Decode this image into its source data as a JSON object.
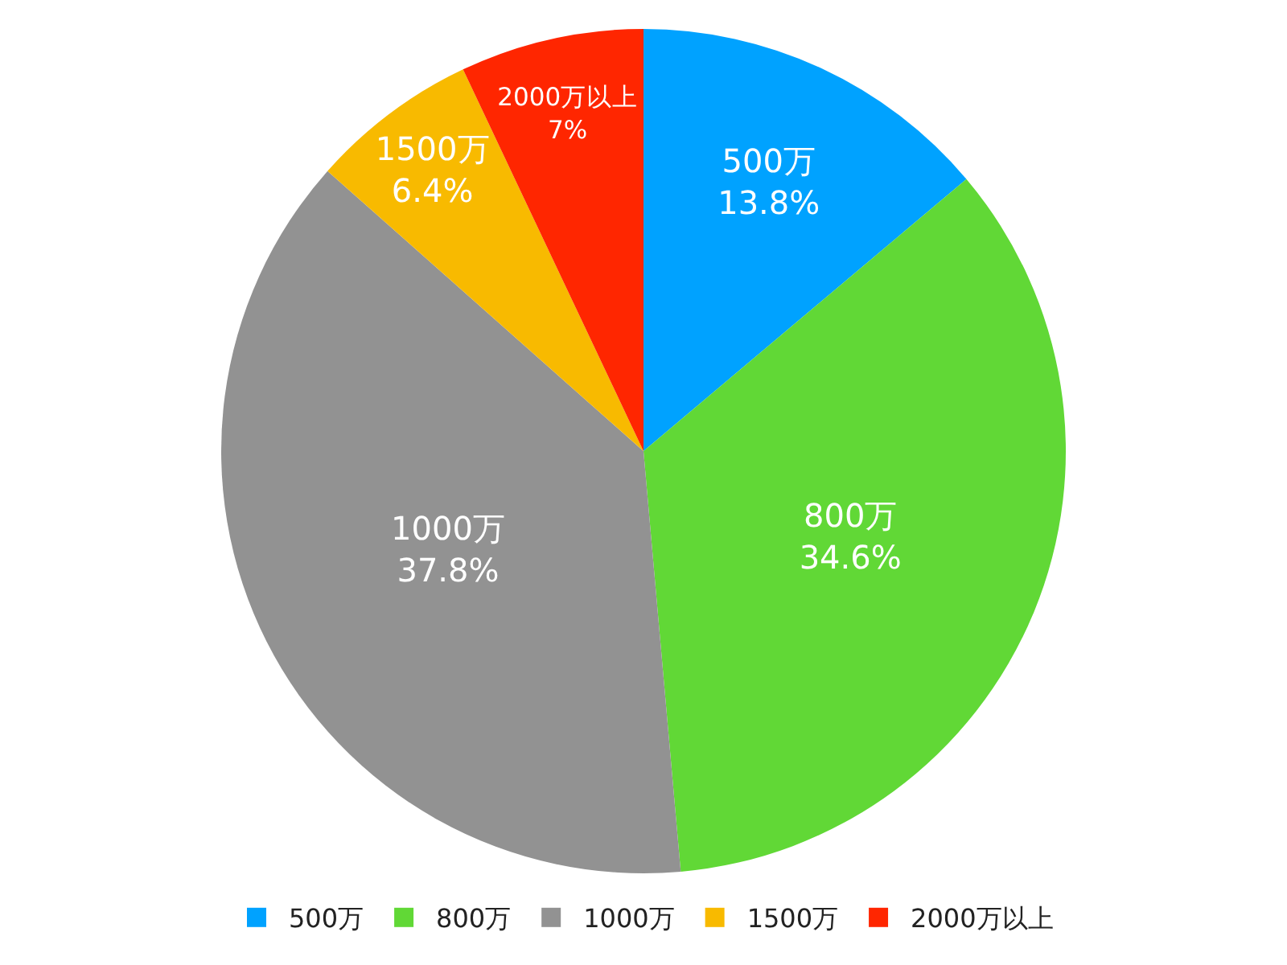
{
  "chart_data": {
    "type": "pie",
    "categories": [
      "500万",
      "800万",
      "1000万",
      "1500万",
      "2000万以上"
    ],
    "values": [
      13.8,
      34.6,
      37.8,
      6.4,
      7
    ],
    "value_labels": [
      "13.8%",
      "34.6%",
      "37.8%",
      "6.4%",
      "7%"
    ],
    "colors": [
      "#00a2ff",
      "#61d836",
      "#929292",
      "#f8ba00",
      "#ff2600"
    ],
    "legend": "bottom"
  }
}
